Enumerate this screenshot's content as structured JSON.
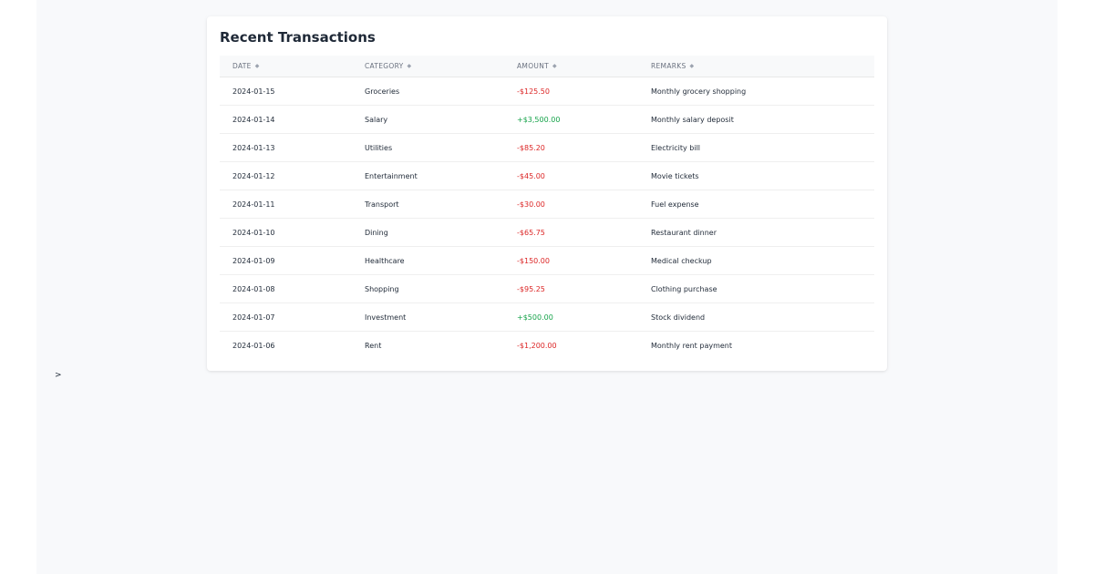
{
  "card": {
    "title": "Recent Transactions"
  },
  "table": {
    "columns": [
      {
        "label": "DATE",
        "sort_icon": "sort-icon"
      },
      {
        "label": "CATEGORY",
        "sort_icon": "sort-icon"
      },
      {
        "label": "AMOUNT",
        "sort_icon": "sort-icon"
      },
      {
        "label": "REMARKS",
        "sort_icon": "sort-icon"
      }
    ],
    "sort_glyph": "◆",
    "rows": [
      {
        "date": "2024-01-15",
        "category": "Groceries",
        "amount": "-$125.50",
        "type": "neg",
        "remarks": "Monthly grocery shopping"
      },
      {
        "date": "2024-01-14",
        "category": "Salary",
        "amount": "+$3,500.00",
        "type": "pos",
        "remarks": "Monthly salary deposit"
      },
      {
        "date": "2024-01-13",
        "category": "Utilities",
        "amount": "-$85.20",
        "type": "neg",
        "remarks": "Electricity bill"
      },
      {
        "date": "2024-01-12",
        "category": "Entertainment",
        "amount": "-$45.00",
        "type": "neg",
        "remarks": "Movie tickets"
      },
      {
        "date": "2024-01-11",
        "category": "Transport",
        "amount": "-$30.00",
        "type": "neg",
        "remarks": "Fuel expense"
      },
      {
        "date": "2024-01-10",
        "category": "Dining",
        "amount": "-$65.75",
        "type": "neg",
        "remarks": "Restaurant dinner"
      },
      {
        "date": "2024-01-09",
        "category": "Healthcare",
        "amount": "-$150.00",
        "type": "neg",
        "remarks": "Medical checkup"
      },
      {
        "date": "2024-01-08",
        "category": "Shopping",
        "amount": "-$95.25",
        "type": "neg",
        "remarks": "Clothing purchase"
      },
      {
        "date": "2024-01-07",
        "category": "Investment",
        "amount": "+$500.00",
        "type": "pos",
        "remarks": "Stock dividend"
      },
      {
        "date": "2024-01-06",
        "category": "Rent",
        "amount": "-$1,200.00",
        "type": "neg",
        "remarks": "Monthly rent payment"
      }
    ]
  },
  "colors": {
    "negative": "#dc2626",
    "positive": "#16a34a",
    "text": "#1f2937",
    "header_text": "#6b7280",
    "header_bg": "#f8f9fa",
    "page_bg": "#f8f9fb"
  },
  "stray_text": ">"
}
